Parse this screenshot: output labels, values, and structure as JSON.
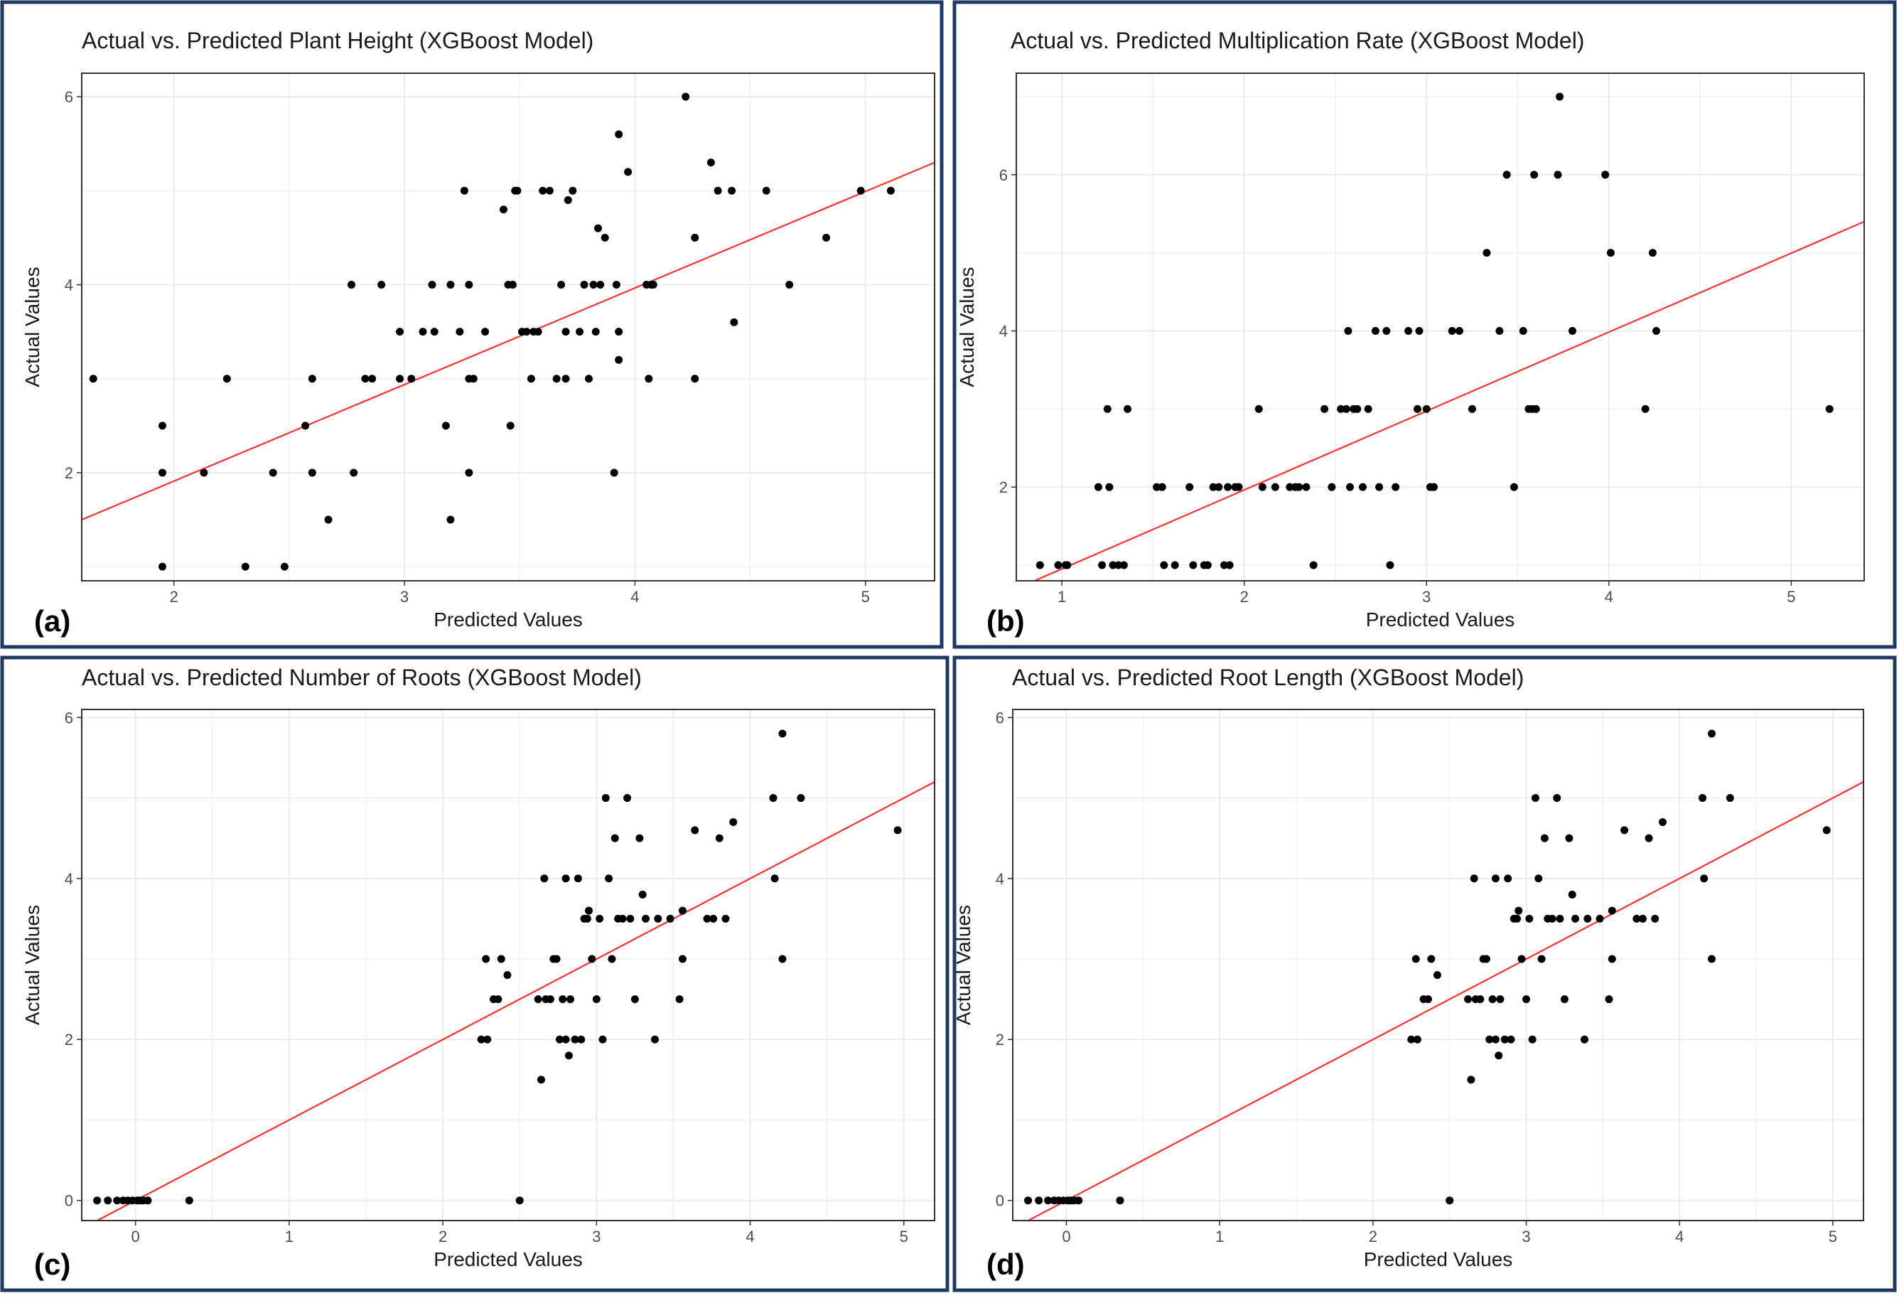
{
  "colors": {
    "frame": "#1f3864",
    "panel_border": "#333333",
    "grid": "#ebebeb",
    "point": "#000000",
    "fit_line": "#ff3030",
    "text": "#1a1a1a",
    "tick_text": "#4d4d4d"
  },
  "chart_data": [
    {
      "type": "scatter",
      "panel_label": "(a)",
      "title": "Actual vs. Predicted Plant Height (XGBoost Model)",
      "xlabel": "Predicted Values",
      "ylabel": "Actual Values",
      "xlim": [
        1.6,
        5.3
      ],
      "ylim": [
        0.85,
        6.25
      ],
      "xticks": [
        2,
        3,
        4,
        5
      ],
      "yticks": [
        2,
        4,
        6
      ],
      "fit_line": {
        "x": [
          1.6,
          5.3
        ],
        "y": [
          1.5,
          5.3
        ]
      },
      "points": [
        [
          1.65,
          3.0
        ],
        [
          1.95,
          2.5
        ],
        [
          1.95,
          2.0
        ],
        [
          1.95,
          1.0
        ],
        [
          2.13,
          2.0
        ],
        [
          2.23,
          3.0
        ],
        [
          2.31,
          1.0
        ],
        [
          2.43,
          2.0
        ],
        [
          2.48,
          1.0
        ],
        [
          2.57,
          2.5
        ],
        [
          2.6,
          3.0
        ],
        [
          2.6,
          2.0
        ],
        [
          2.67,
          1.5
        ],
        [
          2.77,
          4.0
        ],
        [
          2.78,
          2.0
        ],
        [
          2.83,
          3.0
        ],
        [
          2.86,
          3.0
        ],
        [
          2.9,
          4.0
        ],
        [
          2.98,
          3.5
        ],
        [
          2.98,
          3.0
        ],
        [
          3.03,
          3.0
        ],
        [
          3.08,
          3.5
        ],
        [
          3.12,
          4.0
        ],
        [
          3.13,
          3.5
        ],
        [
          3.18,
          2.5
        ],
        [
          3.2,
          1.5
        ],
        [
          3.2,
          4.0
        ],
        [
          3.24,
          3.5
        ],
        [
          3.26,
          5.0
        ],
        [
          3.28,
          4.0
        ],
        [
          3.28,
          3.0
        ],
        [
          3.28,
          2.0
        ],
        [
          3.3,
          3.0
        ],
        [
          3.35,
          3.5
        ],
        [
          3.43,
          4.8
        ],
        [
          3.45,
          4.0
        ],
        [
          3.47,
          4.0
        ],
        [
          3.46,
          2.5
        ],
        [
          3.48,
          5.0
        ],
        [
          3.49,
          5.0
        ],
        [
          3.51,
          3.5
        ],
        [
          3.53,
          3.5
        ],
        [
          3.55,
          3.0
        ],
        [
          3.56,
          3.5
        ],
        [
          3.58,
          3.5
        ],
        [
          3.6,
          5.0
        ],
        [
          3.63,
          5.0
        ],
        [
          3.66,
          3.0
        ],
        [
          3.68,
          4.0
        ],
        [
          3.7,
          3.0
        ],
        [
          3.7,
          3.5
        ],
        [
          3.71,
          4.9
        ],
        [
          3.73,
          5.0
        ],
        [
          3.76,
          3.5
        ],
        [
          3.78,
          4.0
        ],
        [
          3.8,
          3.0
        ],
        [
          3.82,
          4.0
        ],
        [
          3.83,
          3.5
        ],
        [
          3.84,
          4.6
        ],
        [
          3.85,
          4.0
        ],
        [
          3.87,
          4.5
        ],
        [
          3.91,
          2.0
        ],
        [
          3.92,
          4.0
        ],
        [
          3.93,
          5.6
        ],
        [
          3.93,
          3.5
        ],
        [
          3.93,
          3.2
        ],
        [
          3.97,
          5.2
        ],
        [
          4.05,
          4.0
        ],
        [
          4.06,
          3.0
        ],
        [
          4.07,
          4.0
        ],
        [
          4.08,
          4.0
        ],
        [
          4.22,
          6.0
        ],
        [
          4.26,
          3.0
        ],
        [
          4.26,
          4.5
        ],
        [
          4.33,
          5.3
        ],
        [
          4.36,
          5.0
        ],
        [
          4.42,
          5.0
        ],
        [
          4.43,
          3.6
        ],
        [
          4.57,
          5.0
        ],
        [
          4.67,
          4.0
        ],
        [
          4.83,
          4.5
        ],
        [
          4.98,
          5.0
        ],
        [
          5.11,
          5.0
        ]
      ]
    },
    {
      "type": "scatter",
      "panel_label": "(b)",
      "title": "Actual vs. Predicted Multiplication Rate (XGBoost Model)",
      "xlabel": "Predicted Values",
      "ylabel": "Actual Values",
      "xlim": [
        0.75,
        5.4
      ],
      "ylim": [
        0.8,
        7.3
      ],
      "xticks": [
        1,
        2,
        3,
        4,
        5
      ],
      "yticks": [
        2,
        4,
        6
      ],
      "fit_line": {
        "x": [
          0.75,
          5.4
        ],
        "y": [
          0.7,
          5.4
        ]
      },
      "points": [
        [
          0.88,
          1.0
        ],
        [
          0.98,
          1.0
        ],
        [
          1.02,
          1.0
        ],
        [
          1.03,
          1.0
        ],
        [
          1.2,
          2.0
        ],
        [
          1.22,
          1.0
        ],
        [
          1.25,
          3.0
        ],
        [
          1.26,
          2.0
        ],
        [
          1.28,
          1.0
        ],
        [
          1.31,
          1.0
        ],
        [
          1.34,
          1.0
        ],
        [
          1.36,
          3.0
        ],
        [
          1.52,
          2.0
        ],
        [
          1.55,
          2.0
        ],
        [
          1.56,
          1.0
        ],
        [
          1.62,
          1.0
        ],
        [
          1.7,
          2.0
        ],
        [
          1.72,
          1.0
        ],
        [
          1.78,
          1.0
        ],
        [
          1.8,
          1.0
        ],
        [
          1.83,
          2.0
        ],
        [
          1.86,
          2.0
        ],
        [
          1.89,
          1.0
        ],
        [
          1.91,
          2.0
        ],
        [
          1.92,
          1.0
        ],
        [
          1.95,
          2.0
        ],
        [
          1.97,
          2.0
        ],
        [
          2.08,
          3.0
        ],
        [
          2.1,
          2.0
        ],
        [
          2.17,
          2.0
        ],
        [
          2.25,
          2.0
        ],
        [
          2.28,
          2.0
        ],
        [
          2.3,
          2.0
        ],
        [
          2.34,
          2.0
        ],
        [
          2.38,
          1.0
        ],
        [
          2.44,
          3.0
        ],
        [
          2.48,
          2.0
        ],
        [
          2.53,
          3.0
        ],
        [
          2.56,
          3.0
        ],
        [
          2.57,
          4.0
        ],
        [
          2.58,
          2.0
        ],
        [
          2.6,
          3.0
        ],
        [
          2.62,
          3.0
        ],
        [
          2.65,
          2.0
        ],
        [
          2.68,
          3.0
        ],
        [
          2.72,
          4.0
        ],
        [
          2.74,
          2.0
        ],
        [
          2.78,
          4.0
        ],
        [
          2.8,
          1.0
        ],
        [
          2.83,
          2.0
        ],
        [
          2.9,
          4.0
        ],
        [
          2.95,
          3.0
        ],
        [
          2.96,
          4.0
        ],
        [
          3.0,
          3.0
        ],
        [
          3.02,
          2.0
        ],
        [
          3.04,
          2.0
        ],
        [
          3.14,
          4.0
        ],
        [
          3.18,
          4.0
        ],
        [
          3.25,
          3.0
        ],
        [
          3.33,
          5.0
        ],
        [
          3.4,
          4.0
        ],
        [
          3.44,
          6.0
        ],
        [
          3.48,
          2.0
        ],
        [
          3.53,
          4.0
        ],
        [
          3.56,
          3.0
        ],
        [
          3.58,
          3.0
        ],
        [
          3.59,
          6.0
        ],
        [
          3.6,
          3.0
        ],
        [
          3.72,
          6.0
        ],
        [
          3.73,
          7.0
        ],
        [
          3.8,
          4.0
        ],
        [
          3.98,
          6.0
        ],
        [
          4.01,
          5.0
        ],
        [
          4.2,
          3.0
        ],
        [
          4.24,
          5.0
        ],
        [
          4.26,
          4.0
        ],
        [
          5.21,
          3.0
        ]
      ]
    },
    {
      "type": "scatter",
      "panel_label": "(c)",
      "title": "Actual vs. Predicted Number of Roots (XGBoost Model)",
      "xlabel": "Predicted Values",
      "ylabel": "Actual Values",
      "xlim": [
        -0.35,
        5.2
      ],
      "ylim": [
        -0.25,
        6.1
      ],
      "xticks": [
        0,
        1,
        2,
        3,
        4,
        5
      ],
      "yticks": [
        0,
        2,
        4,
        6
      ],
      "fit_line": {
        "x": [
          -0.35,
          5.2
        ],
        "y": [
          -0.35,
          5.2
        ]
      },
      "points": [
        [
          -0.25,
          0.0
        ],
        [
          -0.18,
          0.0
        ],
        [
          -0.12,
          0.0
        ],
        [
          -0.08,
          0.0
        ],
        [
          -0.05,
          0.0
        ],
        [
          -0.02,
          0.0
        ],
        [
          0.01,
          0.0
        ],
        [
          0.03,
          0.0
        ],
        [
          0.05,
          0.0
        ],
        [
          0.08,
          0.0
        ],
        [
          0.35,
          0.0
        ],
        [
          2.25,
          2.0
        ],
        [
          2.28,
          3.0
        ],
        [
          2.29,
          2.0
        ],
        [
          2.33,
          2.5
        ],
        [
          2.36,
          2.5
        ],
        [
          2.38,
          3.0
        ],
        [
          2.42,
          2.8
        ],
        [
          2.5,
          0.0
        ],
        [
          2.62,
          2.5
        ],
        [
          2.64,
          1.5
        ],
        [
          2.66,
          4.0
        ],
        [
          2.67,
          2.5
        ],
        [
          2.7,
          2.5
        ],
        [
          2.72,
          3.0
        ],
        [
          2.74,
          3.0
        ],
        [
          2.76,
          2.0
        ],
        [
          2.78,
          2.5
        ],
        [
          2.8,
          2.0
        ],
        [
          2.8,
          4.0
        ],
        [
          2.82,
          1.8
        ],
        [
          2.83,
          2.5
        ],
        [
          2.86,
          2.0
        ],
        [
          2.88,
          4.0
        ],
        [
          2.9,
          2.0
        ],
        [
          2.92,
          3.5
        ],
        [
          2.94,
          3.5
        ],
        [
          2.95,
          3.6
        ],
        [
          2.97,
          3.0
        ],
        [
          3.0,
          2.5
        ],
        [
          3.02,
          3.5
        ],
        [
          3.04,
          2.0
        ],
        [
          3.06,
          5.0
        ],
        [
          3.08,
          4.0
        ],
        [
          3.1,
          3.0
        ],
        [
          3.12,
          4.5
        ],
        [
          3.14,
          3.5
        ],
        [
          3.17,
          3.5
        ],
        [
          3.2,
          5.0
        ],
        [
          3.22,
          3.5
        ],
        [
          3.25,
          2.5
        ],
        [
          3.28,
          4.5
        ],
        [
          3.3,
          3.8
        ],
        [
          3.32,
          3.5
        ],
        [
          3.38,
          2.0
        ],
        [
          3.4,
          3.5
        ],
        [
          3.48,
          3.5
        ],
        [
          3.54,
          2.5
        ],
        [
          3.56,
          3.6
        ],
        [
          3.56,
          3.0
        ],
        [
          3.64,
          4.6
        ],
        [
          3.72,
          3.5
        ],
        [
          3.76,
          3.5
        ],
        [
          3.8,
          4.5
        ],
        [
          3.84,
          3.5
        ],
        [
          3.89,
          4.7
        ],
        [
          4.15,
          5.0
        ],
        [
          4.16,
          4.0
        ],
        [
          4.21,
          3.0
        ],
        [
          4.21,
          5.8
        ],
        [
          4.33,
          5.0
        ],
        [
          4.96,
          4.6
        ]
      ]
    },
    {
      "type": "scatter",
      "panel_label": "(d)",
      "title": "Actual vs. Predicted Root Length (XGBoost Model)",
      "xlabel": "Predicted Values",
      "ylabel": "Actual Values",
      "xlim": [
        -0.35,
        5.2
      ],
      "ylim": [
        -0.25,
        6.1
      ],
      "xticks": [
        0,
        1,
        2,
        3,
        4,
        5
      ],
      "yticks": [
        0,
        2,
        4,
        6
      ],
      "fit_line": {
        "x": [
          -0.35,
          5.2
        ],
        "y": [
          -0.35,
          5.2
        ]
      },
      "points": [
        [
          -0.25,
          0.0
        ],
        [
          -0.18,
          0.0
        ],
        [
          -0.12,
          0.0
        ],
        [
          -0.08,
          0.0
        ],
        [
          -0.05,
          0.0
        ],
        [
          -0.02,
          0.0
        ],
        [
          0.01,
          0.0
        ],
        [
          0.03,
          0.0
        ],
        [
          0.05,
          0.0
        ],
        [
          0.08,
          0.0
        ],
        [
          0.35,
          0.0
        ],
        [
          2.25,
          2.0
        ],
        [
          2.28,
          3.0
        ],
        [
          2.29,
          2.0
        ],
        [
          2.33,
          2.5
        ],
        [
          2.36,
          2.5
        ],
        [
          2.38,
          3.0
        ],
        [
          2.42,
          2.8
        ],
        [
          2.5,
          0.0
        ],
        [
          2.62,
          2.5
        ],
        [
          2.64,
          1.5
        ],
        [
          2.66,
          4.0
        ],
        [
          2.67,
          2.5
        ],
        [
          2.7,
          2.5
        ],
        [
          2.72,
          3.0
        ],
        [
          2.74,
          3.0
        ],
        [
          2.76,
          2.0
        ],
        [
          2.78,
          2.5
        ],
        [
          2.8,
          2.0
        ],
        [
          2.8,
          4.0
        ],
        [
          2.82,
          1.8
        ],
        [
          2.83,
          2.5
        ],
        [
          2.86,
          2.0
        ],
        [
          2.88,
          4.0
        ],
        [
          2.9,
          2.0
        ],
        [
          2.92,
          3.5
        ],
        [
          2.94,
          3.5
        ],
        [
          2.95,
          3.6
        ],
        [
          2.97,
          3.0
        ],
        [
          3.0,
          2.5
        ],
        [
          3.02,
          3.5
        ],
        [
          3.04,
          2.0
        ],
        [
          3.06,
          5.0
        ],
        [
          3.08,
          4.0
        ],
        [
          3.1,
          3.0
        ],
        [
          3.12,
          4.5
        ],
        [
          3.14,
          3.5
        ],
        [
          3.17,
          3.5
        ],
        [
          3.2,
          5.0
        ],
        [
          3.22,
          3.5
        ],
        [
          3.25,
          2.5
        ],
        [
          3.28,
          4.5
        ],
        [
          3.3,
          3.8
        ],
        [
          3.32,
          3.5
        ],
        [
          3.38,
          2.0
        ],
        [
          3.4,
          3.5
        ],
        [
          3.48,
          3.5
        ],
        [
          3.54,
          2.5
        ],
        [
          3.56,
          3.6
        ],
        [
          3.56,
          3.0
        ],
        [
          3.64,
          4.6
        ],
        [
          3.72,
          3.5
        ],
        [
          3.76,
          3.5
        ],
        [
          3.8,
          4.5
        ],
        [
          3.84,
          3.5
        ],
        [
          3.89,
          4.7
        ],
        [
          4.15,
          5.0
        ],
        [
          4.16,
          4.0
        ],
        [
          4.21,
          3.0
        ],
        [
          4.21,
          5.8
        ],
        [
          4.33,
          5.0
        ],
        [
          4.96,
          4.6
        ]
      ]
    }
  ]
}
